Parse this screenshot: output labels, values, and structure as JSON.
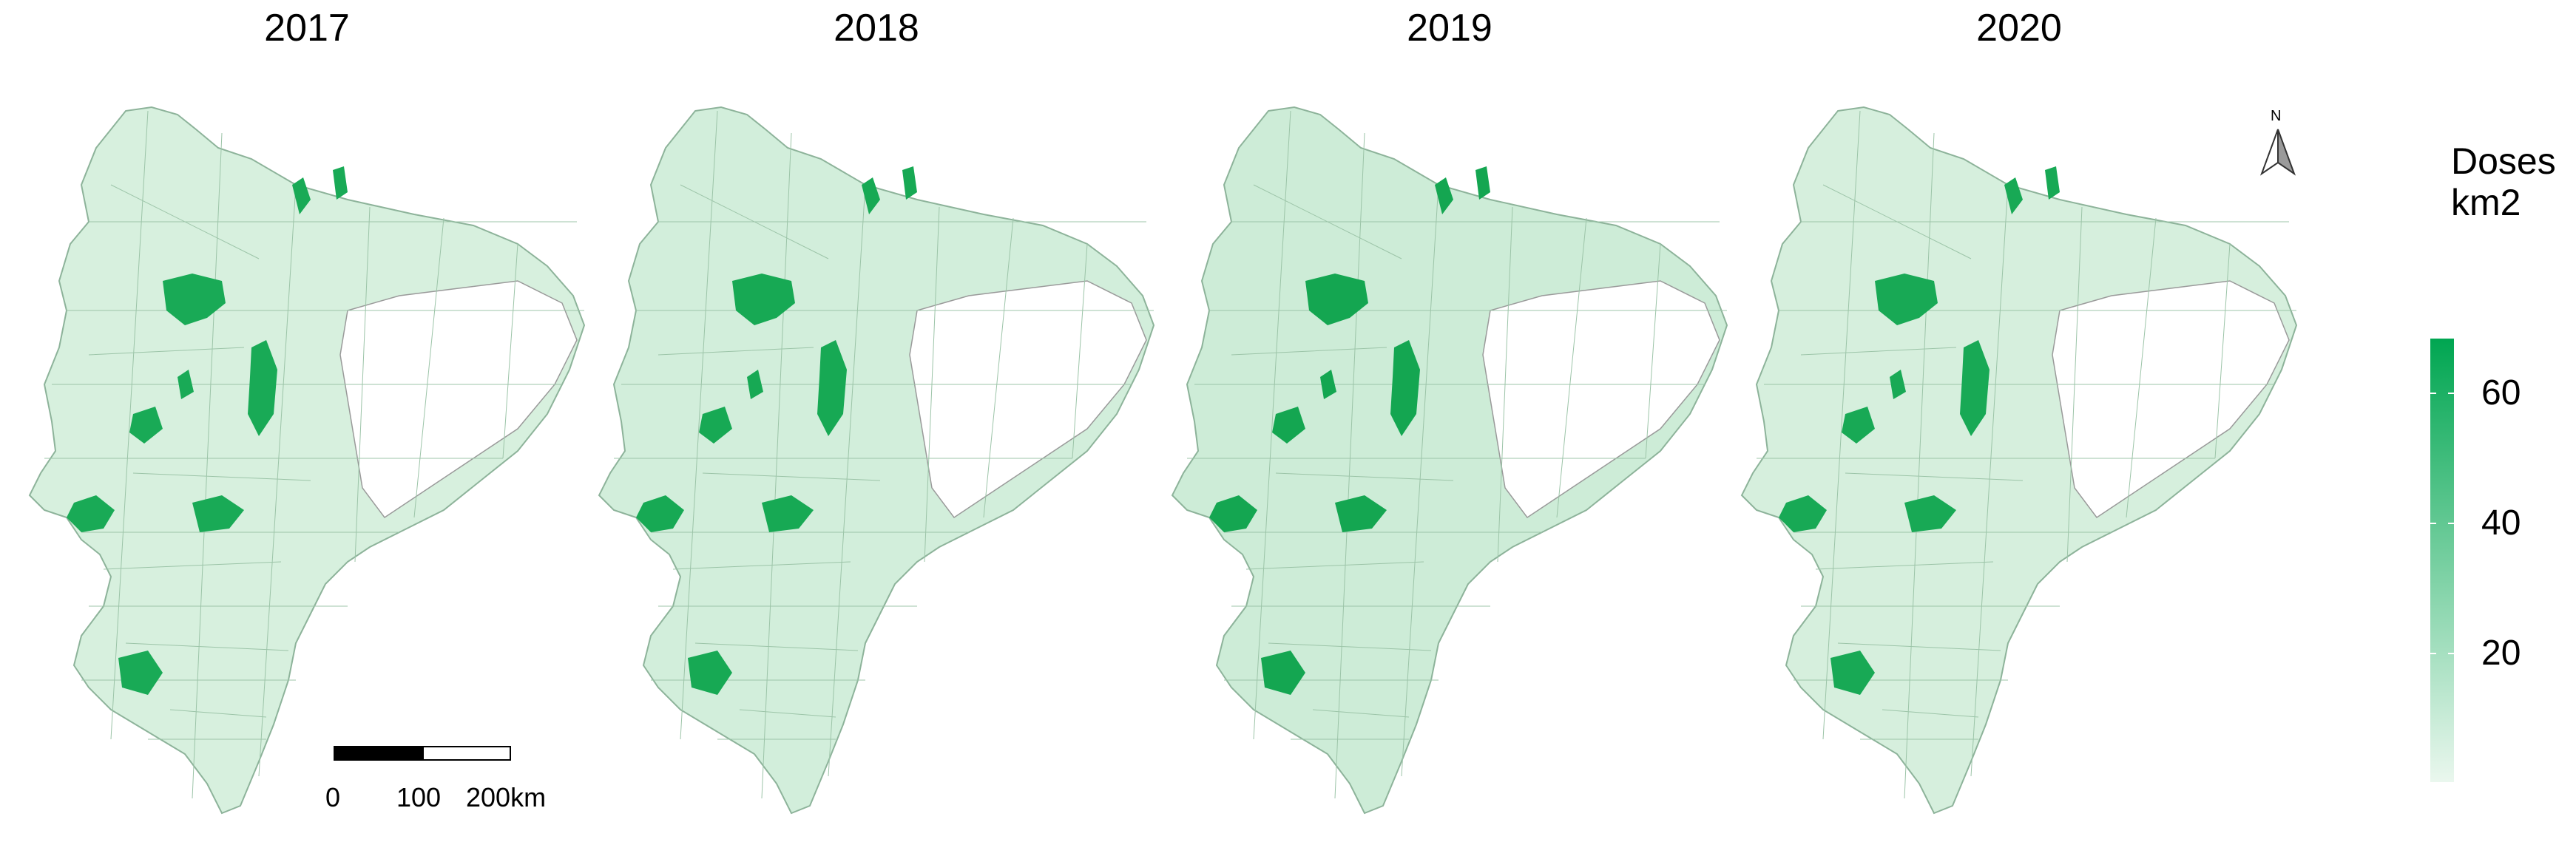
{
  "panels": [
    {
      "year": "2017"
    },
    {
      "year": "2018"
    },
    {
      "year": "2019"
    },
    {
      "year": "2020"
    }
  ],
  "legend": {
    "title_line1": "Doses",
    "title_line2": "km2",
    "ticks": [
      "60",
      "40",
      "20"
    ],
    "tick_values": [
      60,
      40,
      20
    ],
    "range": [
      0,
      68
    ],
    "color_low": "#e8f6ec",
    "color_high": "#00a651"
  },
  "scale_bar": {
    "labels": [
      "0",
      "100",
      "200km"
    ]
  },
  "north_arrow": {
    "label": "N"
  },
  "colors": {
    "region_fill_light": "#dcf2e2",
    "region_fill_mid": "#8fd4a6",
    "region_fill_dark": "#17a954",
    "no_data_fill": "#ffffff",
    "border": "#7fa08a"
  }
}
